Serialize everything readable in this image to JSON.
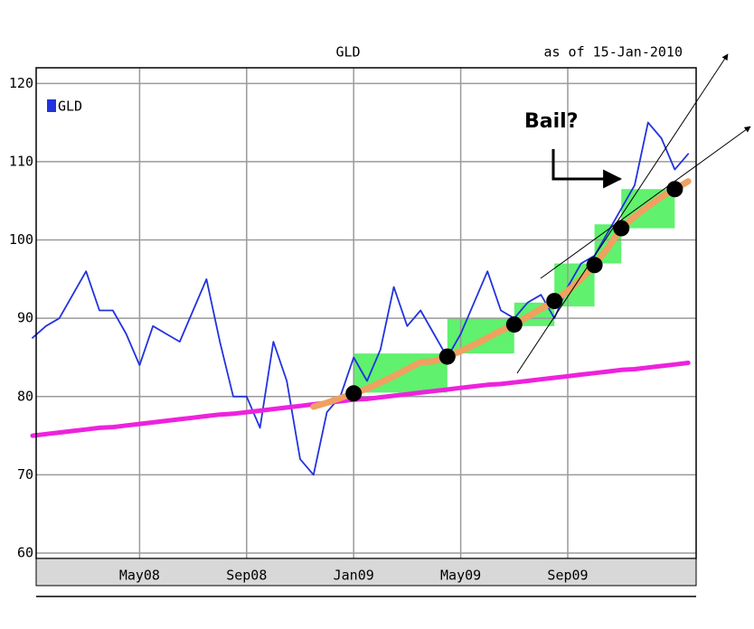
{
  "chart_data": {
    "type": "line",
    "title": "GLD",
    "subtitle": "as of 15-Jan-2010",
    "annotation": "Bail?",
    "categories": [
      null,
      null,
      null,
      null,
      null,
      null,
      null,
      null,
      "May08",
      null,
      null,
      null,
      null,
      null,
      null,
      null,
      "Sep08",
      null,
      null,
      null,
      null,
      null,
      null,
      null,
      "Jan09",
      null,
      null,
      null,
      null,
      null,
      null,
      null,
      "May09",
      null,
      null,
      null,
      null,
      null,
      null,
      null,
      "Sep09",
      null,
      null,
      null,
      null,
      null,
      null,
      null,
      null,
      null
    ],
    "ylim": [
      60,
      122
    ],
    "yticks": [
      60,
      70,
      80,
      90,
      100,
      110,
      120
    ],
    "grid": true,
    "legend": "top-left",
    "series": [
      {
        "name": "GLD",
        "color": "#2233dd",
        "width": 1.8,
        "values": [
          87.5,
          89,
          90,
          93,
          96,
          91,
          91,
          88,
          84,
          89,
          88,
          87,
          91,
          95,
          87,
          80,
          80,
          76,
          87,
          82,
          72,
          70,
          78,
          80,
          85,
          82,
          86,
          94,
          89,
          91,
          88,
          85,
          88,
          92,
          96,
          91,
          90,
          92,
          93,
          90,
          94,
          97,
          98,
          101,
          104,
          107,
          115,
          113,
          109,
          111
        ]
      },
      {
        "color": "#ee22dd",
        "width": 5,
        "values": [
          75.0,
          75.2,
          75.4,
          75.6,
          75.8,
          76.0,
          76.1,
          76.3,
          76.5,
          76.7,
          76.9,
          77.1,
          77.3,
          77.5,
          77.7,
          77.8,
          78.0,
          78.2,
          78.4,
          78.6,
          78.8,
          79.0,
          79.2,
          79.4,
          79.6,
          79.7,
          79.9,
          80.1,
          80.3,
          80.5,
          80.7,
          80.9,
          81.1,
          81.3,
          81.5,
          81.6,
          81.8,
          82.0,
          82.2,
          82.4,
          82.6,
          82.8,
          83.0,
          83.2,
          83.4,
          83.5,
          83.7,
          83.9,
          84.1,
          84.3
        ]
      },
      {
        "color": "#f0a060",
        "width": 7,
        "values": [
          null,
          null,
          null,
          null,
          null,
          null,
          null,
          null,
          null,
          null,
          null,
          null,
          null,
          null,
          null,
          null,
          null,
          null,
          null,
          null,
          null,
          78.7,
          79.2,
          79.8,
          80.4,
          81,
          81.8,
          82.6,
          83.5,
          84.4,
          84.5,
          85.1,
          85.8,
          86.6,
          87.5,
          88.4,
          89.2,
          90.2,
          91.2,
          92.2,
          93.5,
          95,
          96.8,
          99,
          101.5,
          103,
          104.3,
          105.5,
          106.5,
          107.5
        ]
      },
      {
        "color": "#000000",
        "marker": "dot",
        "values": [
          null,
          null,
          null,
          null,
          null,
          null,
          null,
          null,
          null,
          null,
          null,
          null,
          null,
          null,
          null,
          null,
          null,
          null,
          null,
          null,
          null,
          null,
          null,
          null,
          80.4,
          null,
          null,
          null,
          null,
          null,
          null,
          85.1,
          null,
          null,
          null,
          null,
          89.2,
          null,
          null,
          92.2,
          null,
          null,
          96.8,
          null,
          101.5,
          null,
          null,
          null,
          106.5,
          null
        ]
      }
    ],
    "boxes": [
      {
        "low": 80.5,
        "high": 85.5
      },
      {
        "low": 85.5,
        "high": 90
      },
      {
        "low": 89,
        "high": 92
      },
      {
        "low": 91.5,
        "high": 97
      },
      {
        "low": 97,
        "high": 102
      },
      {
        "low": 101.5,
        "high": 106.5
      }
    ],
    "box_color": "#44ee55"
  }
}
